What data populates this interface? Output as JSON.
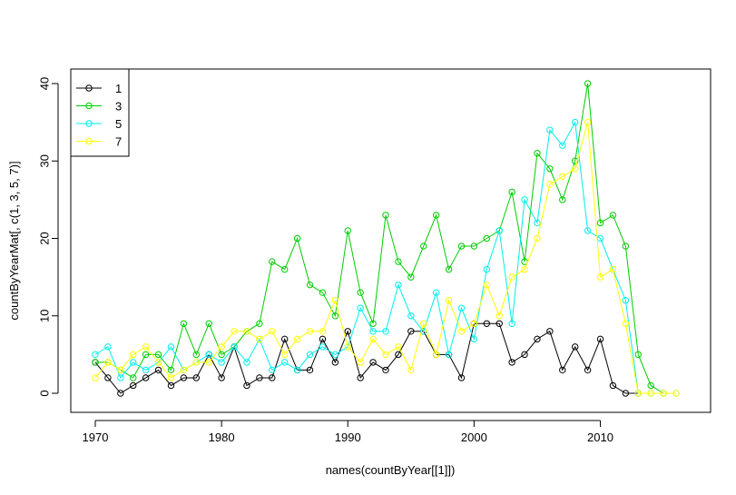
{
  "chart_data": {
    "type": "line",
    "xlabel": "names(countByYear[[1]])",
    "ylabel": "countByYearMat[, c(1, 3, 5, 7)]",
    "xlim": [
      1970,
      2016
    ],
    "ylim": [
      0,
      40
    ],
    "x_ticks": [
      "1970",
      "1980",
      "1990",
      "2000",
      "2010"
    ],
    "y_ticks": [
      "0",
      "10",
      "20",
      "30",
      "40"
    ],
    "grid": false,
    "legend_position": "top-left",
    "x": [
      1970,
      1971,
      1972,
      1973,
      1974,
      1975,
      1976,
      1977,
      1978,
      1979,
      1980,
      1981,
      1982,
      1983,
      1984,
      1985,
      1986,
      1987,
      1988,
      1989,
      1990,
      1991,
      1992,
      1993,
      1994,
      1995,
      1996,
      1997,
      1998,
      1999,
      2000,
      2001,
      2002,
      2003,
      2004,
      2005,
      2006,
      2007,
      2008,
      2009,
      2010,
      2011,
      2012,
      2013,
      2014,
      2015,
      2016
    ],
    "series": [
      {
        "name": "1",
        "color": "#000000",
        "values": [
          4,
          2,
          0,
          1,
          2,
          3,
          1,
          2,
          2,
          5,
          2,
          6,
          1,
          2,
          2,
          7,
          3,
          3,
          7,
          4,
          8,
          2,
          4,
          3,
          5,
          8,
          8,
          5,
          5,
          2,
          9,
          9,
          9,
          4,
          5,
          7,
          8,
          3,
          6,
          3,
          7,
          1,
          0,
          0,
          null,
          null,
          null
        ]
      },
      {
        "name": "3",
        "color": "#00cd00",
        "values": [
          4,
          4,
          3,
          2,
          5,
          5,
          3,
          9,
          5,
          9,
          5,
          6,
          8,
          9,
          17,
          16,
          20,
          14,
          13,
          10,
          21,
          13,
          9,
          23,
          17,
          15,
          19,
          23,
          16,
          19,
          19,
          20,
          21,
          26,
          17,
          31,
          29,
          25,
          30,
          40,
          22,
          23,
          19,
          5,
          1,
          0,
          null
        ]
      },
      {
        "name": "5",
        "color": "#00eeee",
        "values": [
          5,
          6,
          2,
          4,
          3,
          4,
          6,
          3,
          4,
          5,
          4,
          6,
          4,
          7,
          3,
          4,
          3,
          5,
          6,
          5,
          6,
          11,
          8,
          8,
          14,
          10,
          8,
          13,
          5,
          11,
          7,
          16,
          21,
          9,
          25,
          22,
          34,
          32,
          35,
          21,
          20,
          16,
          12,
          0,
          0,
          0,
          0
        ]
      },
      {
        "name": "7",
        "color": "#ffff00",
        "values": [
          2,
          4,
          3,
          5,
          6,
          4,
          2,
          3,
          4,
          4,
          6,
          8,
          8,
          7,
          8,
          5,
          7,
          8,
          8,
          12,
          6,
          4,
          7,
          5,
          6,
          3,
          9,
          5,
          12,
          8,
          9,
          14,
          10,
          15,
          16,
          20,
          27,
          28,
          29,
          35,
          15,
          16,
          9,
          0,
          0,
          0,
          0
        ]
      }
    ]
  }
}
